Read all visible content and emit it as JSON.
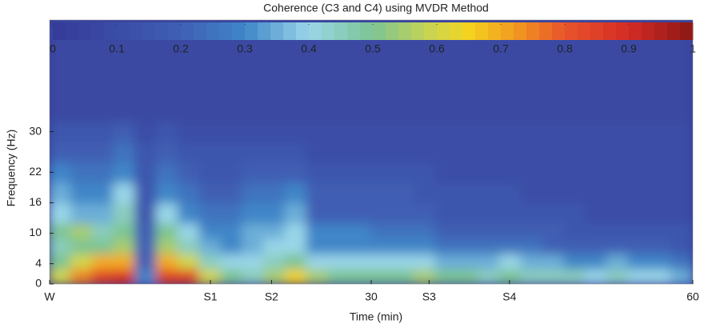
{
  "chart_data": {
    "type": "heatmap",
    "title": "Coherence (C3 and C4) using MVDR Method",
    "x_label": "Time (min)",
    "y_label": "Frequency (Hz)",
    "x_edges": [
      0,
      2,
      4,
      6,
      8,
      10,
      12,
      14,
      16,
      18,
      20,
      22,
      24,
      26,
      28,
      30,
      32,
      34,
      36,
      38,
      40,
      42,
      44,
      46,
      48,
      50,
      52,
      54,
      56,
      58,
      60
    ],
    "y_edges": [
      0,
      3,
      6,
      9,
      12,
      16,
      20,
      24,
      28,
      32,
      52
    ],
    "z": [
      [
        0.6,
        0.75,
        0.85,
        0.88,
        0.3,
        0.85,
        0.85,
        0.6,
        0.5,
        0.45,
        0.55,
        0.65,
        0.55,
        0.5,
        0.5,
        0.5,
        0.5,
        0.55,
        0.5,
        0.5,
        0.45,
        0.5,
        0.45,
        0.45,
        0.45,
        0.4,
        0.45,
        0.4,
        0.4,
        0.35
      ],
      [
        0.5,
        0.6,
        0.7,
        0.7,
        0.2,
        0.7,
        0.6,
        0.45,
        0.4,
        0.4,
        0.45,
        0.5,
        0.4,
        0.4,
        0.4,
        0.4,
        0.4,
        0.4,
        0.35,
        0.35,
        0.35,
        0.4,
        0.35,
        0.35,
        0.3,
        0.3,
        0.35,
        0.3,
        0.3,
        0.25
      ],
      [
        0.45,
        0.5,
        0.5,
        0.55,
        0.2,
        0.55,
        0.45,
        0.35,
        0.3,
        0.35,
        0.4,
        0.4,
        0.3,
        0.3,
        0.3,
        0.3,
        0.3,
        0.3,
        0.25,
        0.25,
        0.25,
        0.25,
        0.25,
        0.2,
        0.2,
        0.2,
        0.2,
        0.2,
        0.2,
        0.15
      ],
      [
        0.5,
        0.55,
        0.45,
        0.5,
        0.2,
        0.5,
        0.4,
        0.3,
        0.3,
        0.35,
        0.35,
        0.4,
        0.3,
        0.3,
        0.3,
        0.25,
        0.25,
        0.25,
        0.2,
        0.2,
        0.2,
        0.2,
        0.2,
        0.2,
        0.15,
        0.15,
        0.15,
        0.15,
        0.15,
        0.15
      ],
      [
        0.4,
        0.35,
        0.35,
        0.45,
        0.15,
        0.4,
        0.3,
        0.25,
        0.25,
        0.3,
        0.3,
        0.35,
        0.2,
        0.2,
        0.2,
        0.2,
        0.2,
        0.2,
        0.15,
        0.15,
        0.15,
        0.15,
        0.15,
        0.15,
        0.15,
        0.1,
        0.1,
        0.1,
        0.1,
        0.1
      ],
      [
        0.35,
        0.3,
        0.3,
        0.4,
        0.15,
        0.3,
        0.25,
        0.2,
        0.2,
        0.25,
        0.25,
        0.3,
        0.2,
        0.2,
        0.2,
        0.2,
        0.2,
        0.15,
        0.15,
        0.15,
        0.15,
        0.15,
        0.1,
        0.1,
        0.1,
        0.1,
        0.1,
        0.1,
        0.1,
        0.1
      ],
      [
        0.3,
        0.25,
        0.25,
        0.3,
        0.15,
        0.25,
        0.2,
        0.15,
        0.15,
        0.2,
        0.2,
        0.2,
        0.15,
        0.15,
        0.15,
        0.15,
        0.15,
        0.15,
        0.1,
        0.1,
        0.1,
        0.1,
        0.1,
        0.1,
        0.1,
        0.1,
        0.1,
        0.1,
        0.1,
        0.1
      ],
      [
        0.2,
        0.2,
        0.2,
        0.25,
        0.15,
        0.2,
        0.15,
        0.15,
        0.15,
        0.15,
        0.15,
        0.15,
        0.1,
        0.1,
        0.1,
        0.1,
        0.1,
        0.1,
        0.1,
        0.1,
        0.1,
        0.1,
        0.1,
        0.1,
        0.1,
        0.1,
        0.1,
        0.1,
        0.1,
        0.1
      ],
      [
        0.15,
        0.15,
        0.15,
        0.2,
        0.1,
        0.15,
        0.1,
        0.1,
        0.1,
        0.1,
        0.1,
        0.1,
        0.1,
        0.1,
        0.1,
        0.1,
        0.1,
        0.1,
        0.1,
        0.1,
        0.1,
        0.1,
        0.1,
        0.1,
        0.1,
        0.1,
        0.1,
        0.1,
        0.1,
        0.1
      ],
      [
        0.08,
        0.08,
        0.08,
        0.08,
        0.08,
        0.08,
        0.08,
        0.08,
        0.08,
        0.08,
        0.08,
        0.08,
        0.08,
        0.08,
        0.08,
        0.08,
        0.08,
        0.08,
        0.08,
        0.08,
        0.08,
        0.08,
        0.08,
        0.08,
        0.08,
        0.08,
        0.08,
        0.08,
        0.08,
        0.08
      ]
    ],
    "xlim": [
      0,
      60
    ],
    "xticks": [
      {
        "value": 0,
        "label": "W"
      },
      {
        "value": 15,
        "label": "S1"
      },
      {
        "value": 20.7,
        "label": "S2"
      },
      30,
      {
        "value": 35.4,
        "label": "S3"
      },
      {
        "value": 42.9,
        "label": "S4"
      },
      60
    ],
    "ylim": [
      0,
      52
    ],
    "yticks": [
      0,
      4,
      10,
      16,
      22,
      30
    ],
    "colorbar_lim": [
      0,
      1
    ],
    "colorbar_ticks": [
      0,
      0.1,
      0.2,
      0.3,
      0.4,
      0.5,
      0.6,
      0.7,
      0.8,
      0.9,
      1
    ],
    "colormap": [
      [
        0,
        "#363a98"
      ],
      [
        0.2,
        "#3f5fb4"
      ],
      [
        0.3,
        "#3f86c8"
      ],
      [
        0.4,
        "#9ad6e8"
      ],
      [
        0.5,
        "#7cc493"
      ],
      [
        0.6,
        "#d2d649"
      ],
      [
        0.65,
        "#f4d21f"
      ],
      [
        0.72,
        "#f29c20"
      ],
      [
        0.8,
        "#e8542a"
      ],
      [
        0.9,
        "#d42b25"
      ],
      [
        1,
        "#8a1714"
      ]
    ]
  }
}
